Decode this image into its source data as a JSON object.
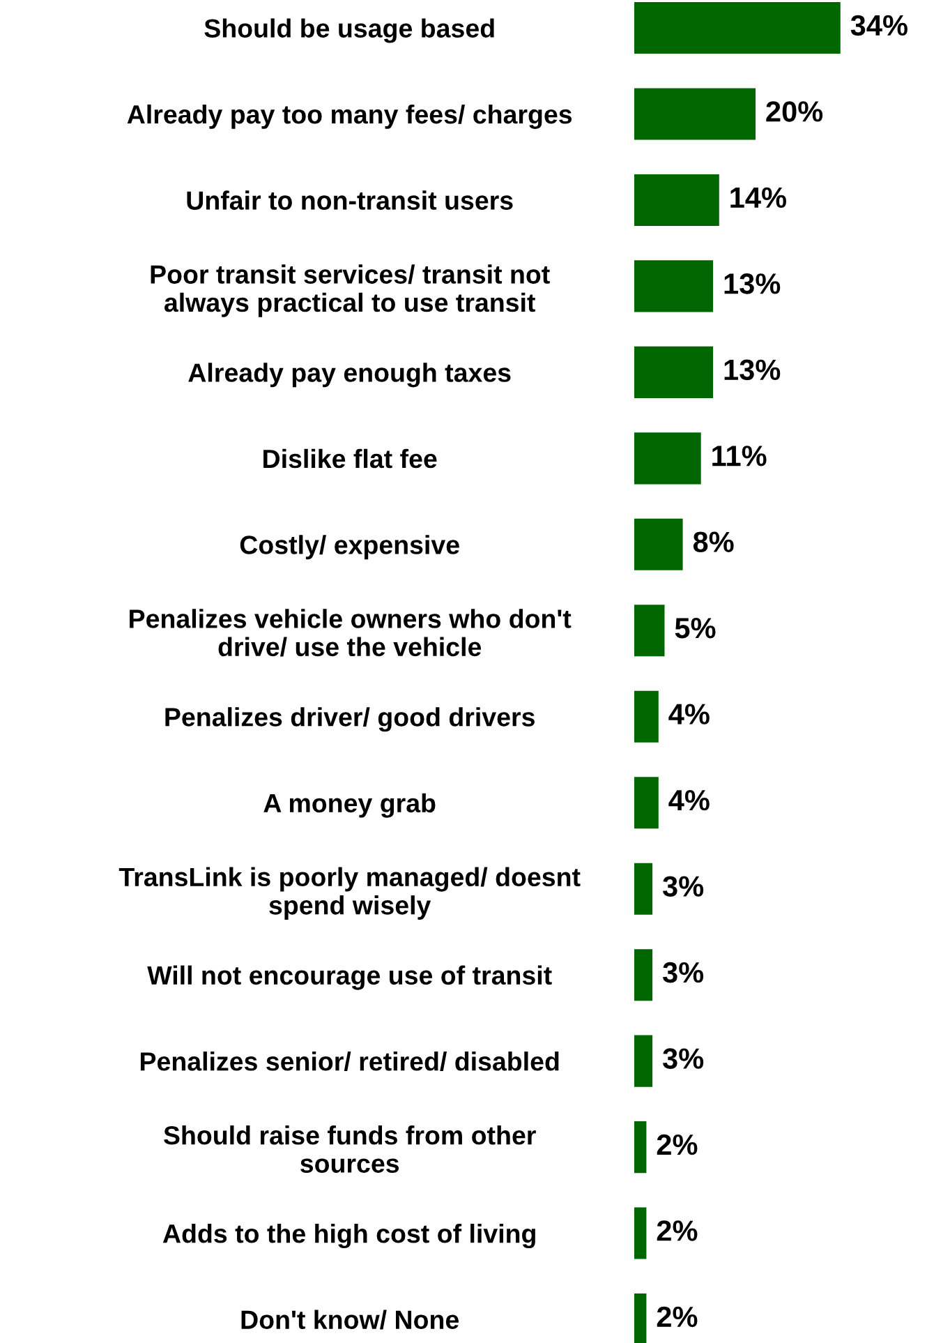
{
  "chart_data": {
    "type": "bar",
    "orientation": "horizontal",
    "color": "#006600",
    "data_labels": true,
    "grid": false,
    "legend": false,
    "categories": [
      "Should be usage based",
      "Already pay too many fees/ charges",
      "Unfair to non-transit users",
      "Poor transit services/ transit not\nalways practical to use transit",
      "Already pay enough taxes",
      "Dislike flat fee",
      "Costly/ expensive",
      "Penalizes vehicle owners who don't\ndrive/ use the vehicle",
      "Penalizes driver/ good drivers",
      "A money grab",
      "TransLink is poorly managed/ doesnt\nspend wisely",
      "Will not encourage use of transit",
      "Penalizes senior/ retired/ disabled",
      "Should raise funds from other\nsources",
      "Adds to the high cost of living",
      "Don't know/ None"
    ],
    "values": [
      34,
      20,
      14,
      13,
      13,
      11,
      8,
      5,
      4,
      4,
      3,
      3,
      3,
      2,
      2,
      2
    ],
    "value_labels": [
      "34%",
      "20%",
      "14%",
      "13%",
      "13%",
      "11%",
      "8%",
      "5%",
      "4%",
      "4%",
      "3%",
      "3%",
      "3%",
      "2%",
      "2%",
      "2%"
    ]
  }
}
